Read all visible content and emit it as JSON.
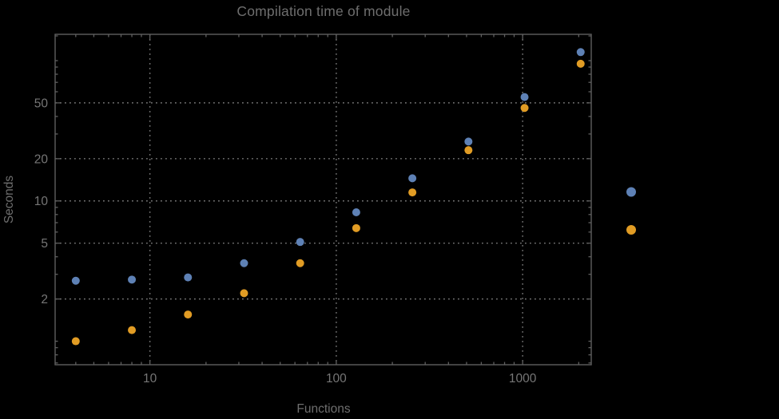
{
  "chart_data": {
    "type": "scatter",
    "title": "Compilation time of module",
    "xlabel": "Functions",
    "ylabel": "Seconds",
    "x_scale": "log",
    "y_scale": "log",
    "xlim": [
      3.1,
      2334
    ],
    "ylim": [
      0.68,
      154
    ],
    "grid": "dotted gridlines at major ticks only",
    "legend_position": "right of plot, marker dots only, labels not visible",
    "x_ticks": {
      "major": [
        10,
        100,
        1000
      ],
      "major_labels": [
        "10",
        "100",
        "1000"
      ],
      "minor": [
        4,
        5,
        6,
        7,
        8,
        9,
        20,
        30,
        40,
        50,
        60,
        70,
        80,
        90,
        200,
        300,
        400,
        500,
        600,
        700,
        800,
        900,
        2000
      ]
    },
    "y_ticks": {
      "major": [
        2,
        5,
        10,
        20,
        50
      ],
      "major_labels": [
        "2",
        "5",
        "10",
        "20",
        "50"
      ],
      "minor": [
        0.7,
        0.8,
        0.9,
        1,
        3,
        4,
        6,
        7,
        8,
        9,
        30,
        40,
        60,
        70,
        80,
        90,
        100,
        150
      ]
    },
    "x": [
      4,
      8,
      16,
      32,
      64,
      128,
      256,
      512,
      1024,
      2048
    ],
    "series": [
      {
        "name": "series-1-blue",
        "color": "#5E81B5",
        "values": [
          2.7,
          2.75,
          2.85,
          3.6,
          5.1,
          8.3,
          14.5,
          26.5,
          55,
          115
        ]
      },
      {
        "name": "series-2-orange",
        "color": "#E19C24",
        "values": [
          1.0,
          1.2,
          1.55,
          2.2,
          3.6,
          6.4,
          11.5,
          23,
          46,
          95
        ]
      }
    ]
  },
  "colors": {
    "background": "#000000",
    "frame": "#5f5f5f",
    "grid": "#787878",
    "tick_label": "#767676",
    "title_text": "#6e6e6e",
    "axis_label": "#6e6e6e",
    "series1": "#5E81B5",
    "series2": "#E19C24"
  }
}
